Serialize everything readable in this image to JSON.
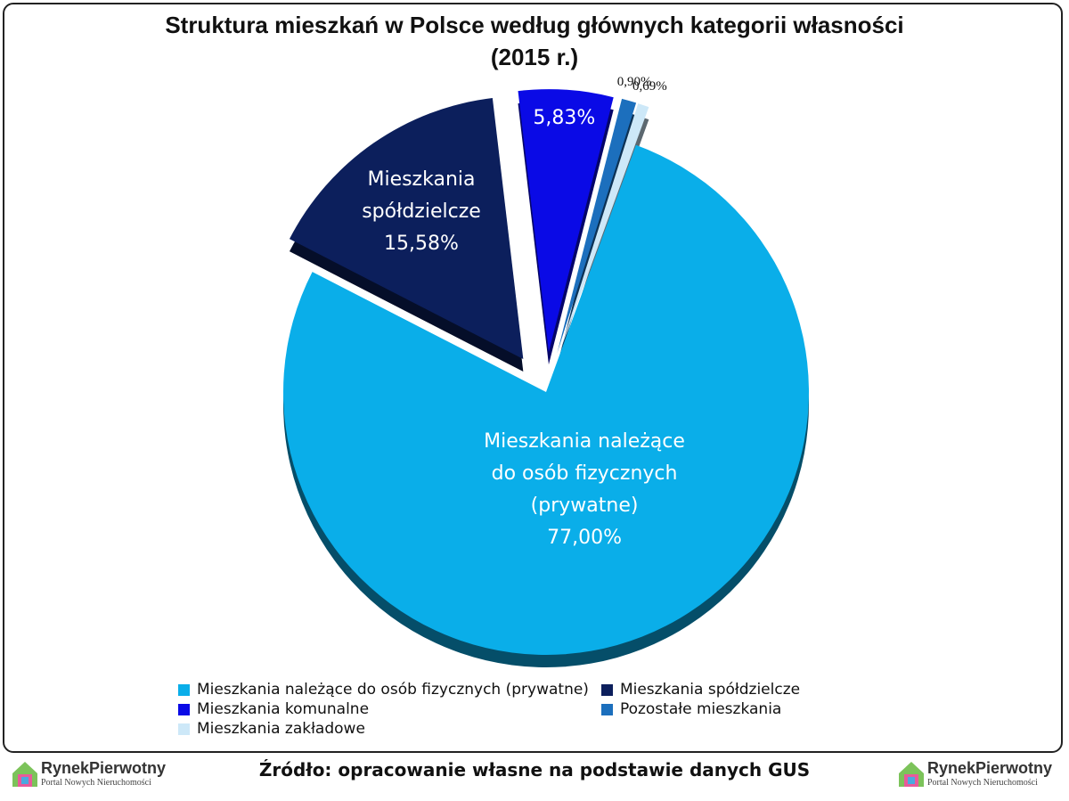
{
  "chart_data": {
    "type": "pie",
    "title": "Struktura mieszkań w Polsce według głównych kategorii własności (2015 r.)",
    "categories": [
      "Mieszkania należące do osób fizycznych (prywatne)",
      "Mieszkania spółdzielcze",
      "Mieszkania komunalne",
      "Pozostałe mieszkania",
      "Mieszkania zakładowe"
    ],
    "values": [
      77.0,
      15.58,
      5.83,
      0.9,
      0.69
    ],
    "value_labels": [
      "77,00%",
      "15,58%",
      "5,83%",
      "0,90%",
      "0,69%"
    ],
    "colors": [
      "#0aaee9",
      "#0c1f5c",
      "#0a0ae6",
      "#1c6fbd",
      "#cde8f8"
    ],
    "source": "Źródło: opracowanie własne na podstawie danych GUS"
  },
  "logo": {
    "name": "RynekPierwotny",
    "tagline": "Portal Nowych Nieruchomości"
  }
}
